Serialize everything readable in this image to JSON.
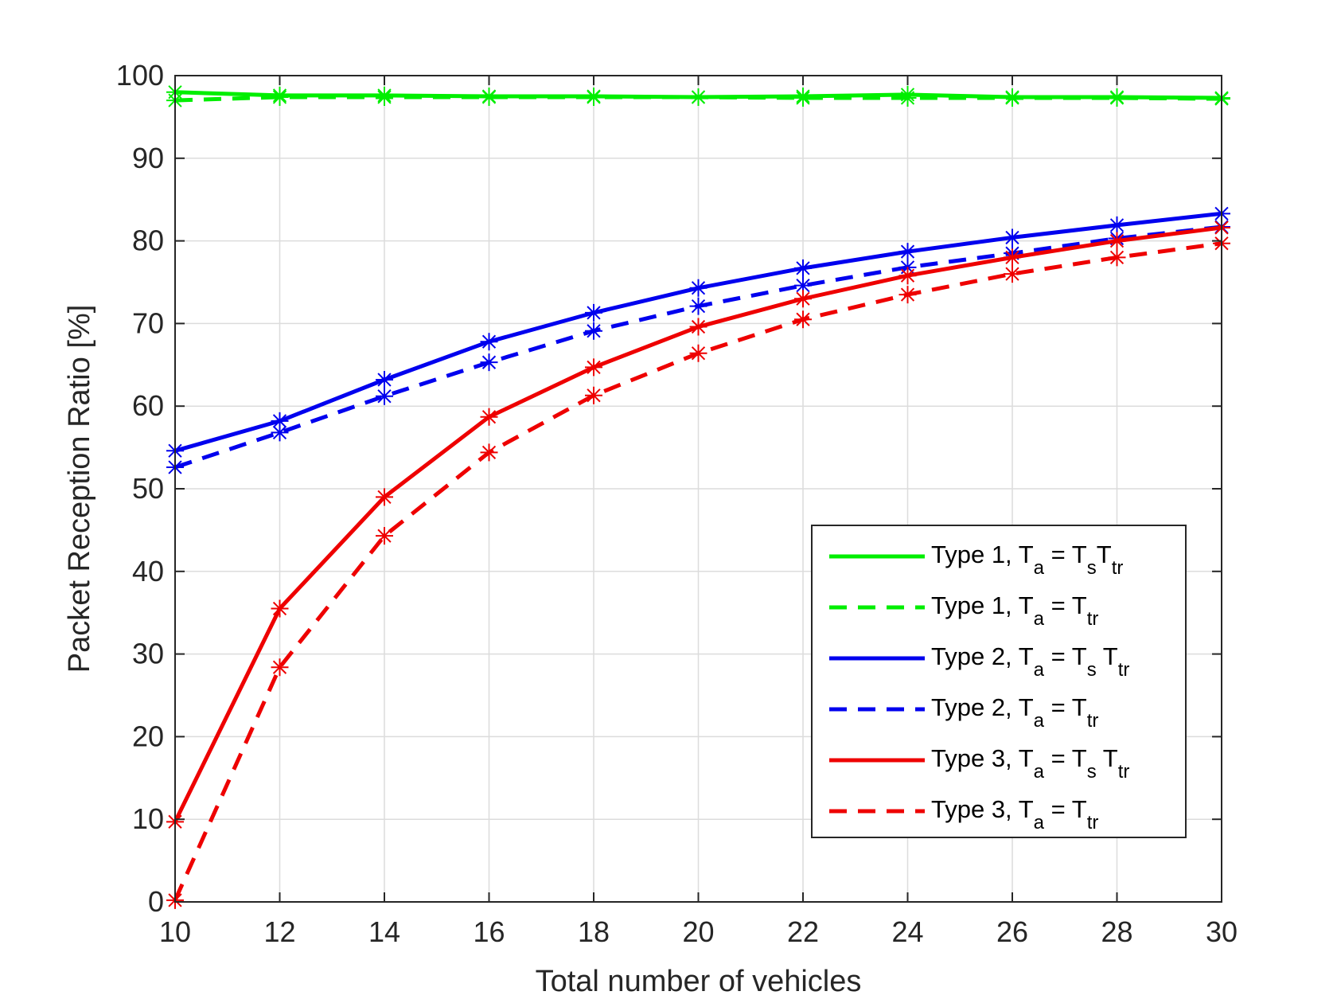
{
  "chart_data": {
    "type": "line",
    "title": "",
    "xlabel": "Total number of vehicles",
    "ylabel": "Packet Reception Ratio [%]",
    "xlim": [
      10,
      30
    ],
    "ylim": [
      0,
      100
    ],
    "grid": true,
    "legend_position": "bottom-right",
    "x": [
      10,
      12,
      14,
      16,
      18,
      20,
      22,
      24,
      26,
      28,
      30
    ],
    "xticks": [
      "10",
      "12",
      "14",
      "16",
      "18",
      "20",
      "22",
      "24",
      "26",
      "28",
      "30"
    ],
    "yticks": [
      "0",
      "10",
      "20",
      "30",
      "40",
      "50",
      "60",
      "70",
      "80",
      "90",
      "100"
    ],
    "series": [
      {
        "name": "Type 1, Ta = TsTtr",
        "legend": {
          "pre": "Type 1, T",
          "s1": "a",
          "mid": " = T",
          "s2": "s",
          "mid2": "T",
          "s3": "tr"
        },
        "color": "#00ee00",
        "dash": "solid",
        "values": [
          98.0,
          97.6,
          97.6,
          97.5,
          97.5,
          97.4,
          97.5,
          97.7,
          97.4,
          97.4,
          97.3
        ]
      },
      {
        "name": "Type 1, Ta = Ttr",
        "legend": {
          "pre": "Type 1, T",
          "s1": "a",
          "mid": " = T",
          "s2": "tr",
          "mid2": "",
          "s3": ""
        },
        "color": "#00ee00",
        "dash": "dashed",
        "values": [
          97.0,
          97.4,
          97.4,
          97.4,
          97.4,
          97.4,
          97.3,
          97.3,
          97.3,
          97.3,
          97.2
        ]
      },
      {
        "name": "Type 2, Ta = Ts Ttr",
        "legend": {
          "pre": "Type 2, T",
          "s1": "a",
          "mid": " = T",
          "s2": "s",
          "mid2": " T",
          "s3": "tr"
        },
        "color": "#0000ee",
        "dash": "solid",
        "values": [
          54.6,
          58.2,
          63.2,
          67.8,
          71.3,
          74.3,
          76.7,
          78.7,
          80.4,
          81.9,
          83.3
        ]
      },
      {
        "name": "Type 2, Ta = Ttr",
        "legend": {
          "pre": "Type 2, T",
          "s1": "a",
          "mid": " = T",
          "s2": "tr",
          "mid2": "",
          "s3": ""
        },
        "color": "#0000ee",
        "dash": "dashed",
        "values": [
          52.6,
          56.8,
          61.2,
          65.3,
          69.1,
          72.1,
          74.6,
          76.8,
          78.5,
          80.3,
          81.7
        ]
      },
      {
        "name": "Type 3, Ta = Ts Ttr",
        "legend": {
          "pre": "Type 3, T",
          "s1": "a",
          "mid": " = T",
          "s2": "s",
          "mid2": " T",
          "s3": "tr"
        },
        "color": "#ee0000",
        "dash": "solid",
        "values": [
          9.7,
          35.5,
          49.0,
          58.7,
          64.7,
          69.6,
          73.0,
          75.8,
          78.0,
          80.0,
          81.6
        ]
      },
      {
        "name": "Type 3, Ta = Ttr",
        "legend": {
          "pre": "Type 3, T",
          "s1": "a",
          "mid": " = T",
          "s2": "tr",
          "mid2": "",
          "s3": ""
        },
        "color": "#ee0000",
        "dash": "dashed",
        "values": [
          0.2,
          28.4,
          44.3,
          54.4,
          61.3,
          66.4,
          70.5,
          73.5,
          76.0,
          78.0,
          79.7
        ]
      }
    ]
  }
}
